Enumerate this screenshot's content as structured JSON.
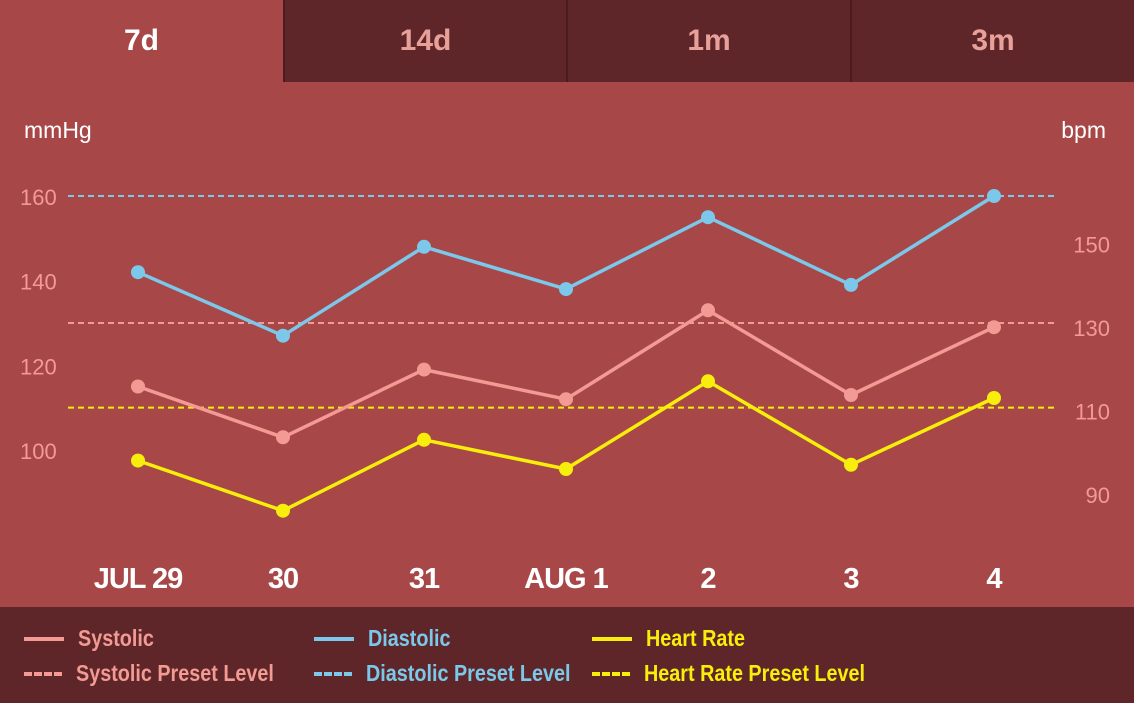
{
  "tabs": [
    {
      "label": "7d",
      "active": true
    },
    {
      "label": "14d",
      "active": false
    },
    {
      "label": "1m",
      "active": false
    },
    {
      "label": "3m",
      "active": false
    }
  ],
  "chart_data": {
    "type": "line",
    "left_axis": {
      "unit": "mmHg",
      "ticks": [
        100,
        120,
        140,
        160
      ],
      "range": [
        80,
        175
      ]
    },
    "right_axis": {
      "unit": "bpm",
      "ticks": [
        90,
        110,
        130,
        150
      ],
      "range": [
        70.6,
        165.7
      ]
    },
    "categories": [
      "JUL 29",
      "30",
      "31",
      "AUG 1",
      "2",
      "3",
      "4"
    ],
    "series": [
      {
        "name": "Systolic",
        "axis": "left",
        "color": "#f29a93",
        "values": [
          115,
          103,
          119,
          112,
          133,
          113,
          129
        ]
      },
      {
        "name": "Diastolic",
        "axis": "left",
        "color": "#7cc8ea",
        "values": [
          142,
          127,
          148,
          138,
          155,
          139,
          160
        ]
      },
      {
        "name": "Heart Rate",
        "axis": "right",
        "color": "#f7ee0c",
        "values": [
          98,
          86,
          103,
          96,
          117,
          97,
          113
        ]
      }
    ],
    "preset_levels": [
      {
        "name": "Systolic Preset Level",
        "axis": "left",
        "value": 130,
        "color": "#f29a93"
      },
      {
        "name": "Diastolic Preset Level",
        "axis": "left",
        "value": 160,
        "color": "#7cc8ea"
      },
      {
        "name": "Heart Rate Preset Level",
        "axis": "left",
        "value": 110,
        "color": "#f7ee0c"
      }
    ],
    "colors": {
      "axis_label": "#ffffff",
      "tick_label": "#f29a93",
      "category_label": "#ffffff"
    }
  },
  "legend": [
    {
      "label": "Systolic",
      "style": "solid",
      "color": "#f29a93"
    },
    {
      "label": "Diastolic",
      "style": "solid",
      "color": "#7cc8ea"
    },
    {
      "label": "Heart Rate",
      "style": "solid",
      "color": "#f7ee0c"
    },
    {
      "label": "Systolic Preset Level",
      "style": "dash",
      "color": "#f29a93"
    },
    {
      "label": "Diastolic Preset Level",
      "style": "dash",
      "color": "#7cc8ea"
    },
    {
      "label": "Heart Rate Preset Level",
      "style": "dash",
      "color": "#f7ee0c"
    }
  ]
}
